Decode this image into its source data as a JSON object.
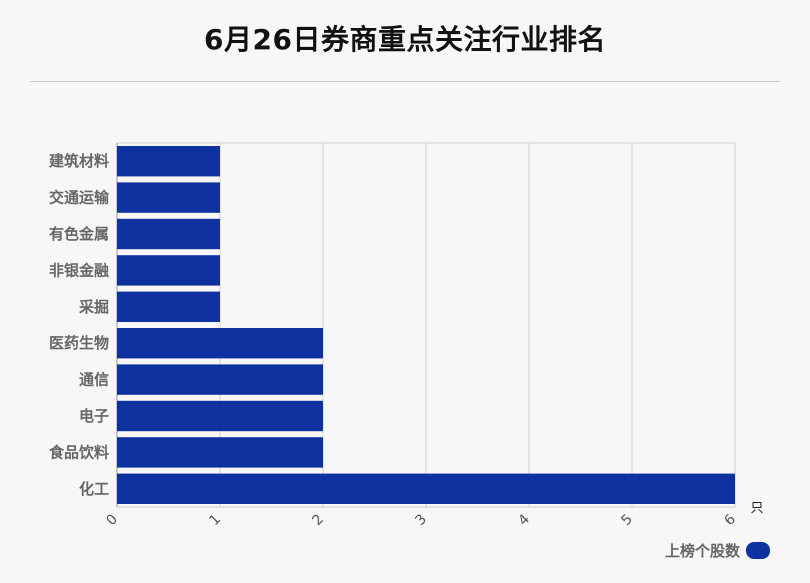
{
  "title": "6月26日券商重点关注行业排名",
  "legend": {
    "label": "上榜个股数",
    "color": "#0d32a0"
  },
  "chart_data": {
    "type": "bar",
    "orientation": "horizontal",
    "categories": [
      "建筑材料",
      "交通运输",
      "有色金属",
      "非银金融",
      "采掘",
      "医药生物",
      "通信",
      "电子",
      "食品饮料",
      "化工"
    ],
    "series": [
      {
        "name": "上榜个股数",
        "values": [
          1,
          1,
          1,
          1,
          1,
          2,
          2,
          2,
          2,
          6
        ],
        "color": "#0d32a0"
      }
    ],
    "xlim": [
      0,
      6
    ],
    "xticks": [
      "0",
      "1",
      "2",
      "3",
      "4",
      "5",
      "6"
    ],
    "x_unit": "只",
    "grid": true,
    "legend_position": "bottom-right"
  }
}
